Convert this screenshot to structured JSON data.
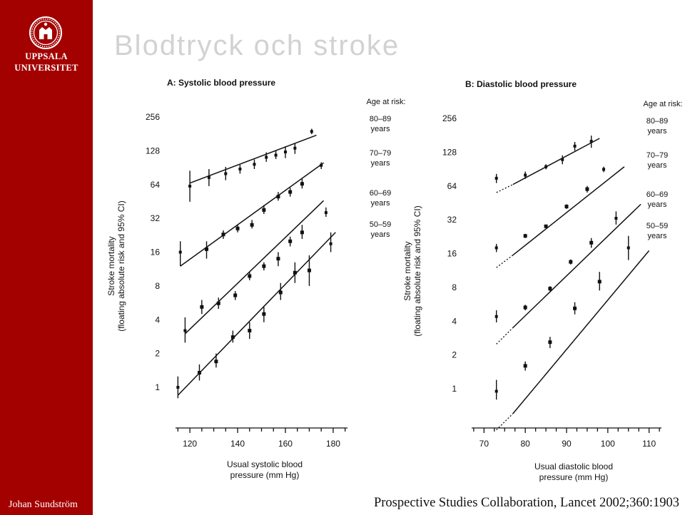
{
  "slide": {
    "title": "Blodtryck och stroke",
    "logo_line1": "UPPSALA",
    "logo_line2": "UNIVERSITET",
    "author": "Johan Sundström",
    "citation": "Prospective Studies Collaboration, Lancet 2002;360:1903"
  },
  "colors": {
    "sidebar": "#a30000",
    "title": "#d2d2d2"
  },
  "chart_data": [
    {
      "type": "scatter",
      "panel": "A",
      "title": "A: Systolic blood pressure",
      "xlabel": [
        "Usual systolic blood",
        "pressure (mm Hg)"
      ],
      "ylabel": [
        "Stroke mortality",
        "(floating absolute risk and 95% CI)"
      ],
      "yscale": "log2",
      "ylim": [
        0.5,
        256
      ],
      "xlim": [
        114,
        186
      ],
      "xticks": [
        120,
        140,
        160,
        180
      ],
      "yticks": [
        1,
        2,
        4,
        8,
        16,
        32,
        64,
        128,
        256
      ],
      "legend_title": "Age at risk:",
      "series": [
        {
          "name": "80–89 years",
          "label1": "80–89",
          "label2": "years",
          "x": [
            120,
            128,
            135,
            141,
            147,
            152,
            156,
            160,
            164,
            171
          ],
          "y": [
            62,
            74,
            80,
            88,
            97,
            112,
            117,
            125,
            135,
            190
          ],
          "lo": [
            45,
            62,
            70,
            80,
            88,
            102,
            108,
            110,
            120,
            180
          ],
          "hi": [
            85,
            88,
            92,
            96,
            107,
            124,
            128,
            140,
            150,
            201
          ],
          "fit": [
            [
              120,
              66
            ],
            [
              173,
              176
            ]
          ],
          "solid": false
        },
        {
          "name": "70–79 years",
          "label1": "70–79",
          "label2": "years",
          "x": [
            116,
            127,
            134,
            140,
            146,
            151,
            157,
            162,
            167,
            175
          ],
          "y": [
            16,
            17,
            23,
            26,
            28,
            38,
            50,
            55,
            65,
            95
          ],
          "lo": [
            12,
            14,
            21,
            24,
            26,
            35,
            46,
            50,
            59,
            88
          ],
          "hi": [
            20,
            20,
            25,
            28,
            31,
            42,
            55,
            60,
            72,
            101
          ],
          "fit": [
            [
              116,
              12
            ],
            [
              176,
              100
            ]
          ],
          "solid": true
        },
        {
          "name": "60–69 years",
          "label1": "60–69",
          "label2": "years",
          "x": [
            118,
            125,
            132,
            139,
            145,
            151,
            157,
            162,
            167,
            177
          ],
          "y": [
            3.2,
            5.2,
            5.6,
            6.6,
            9.8,
            12,
            14,
            20,
            24,
            36
          ],
          "lo": [
            2.5,
            4.5,
            5.0,
            6.0,
            9.0,
            11,
            12,
            18,
            21,
            33
          ],
          "hi": [
            4.2,
            6.0,
            6.3,
            7.2,
            10.7,
            13,
            16,
            22,
            28,
            40
          ],
          "fit": [
            [
              118,
              3
            ],
            [
              176,
              46
            ]
          ],
          "solid": true
        },
        {
          "name": "50–59 years",
          "label1": "50–59",
          "label2": "years",
          "x": [
            115,
            124,
            131,
            138,
            145,
            151,
            158,
            164,
            170,
            179
          ],
          "y": [
            1.0,
            1.35,
            1.7,
            2.8,
            3.2,
            4.5,
            7,
            10.5,
            11,
            19
          ],
          "lo": [
            0.8,
            1.15,
            1.5,
            2.5,
            2.7,
            3.8,
            6,
            8.5,
            8,
            16
          ],
          "hi": [
            1.25,
            1.6,
            2.0,
            3.2,
            3.8,
            5.2,
            8.5,
            13,
            15,
            24
          ],
          "fit": [
            [
              115,
              0.85
            ],
            [
              181,
              24
            ]
          ],
          "solid": true
        }
      ]
    },
    {
      "type": "scatter",
      "panel": "B",
      "title": "B: Diastolic blood pressure",
      "xlabel": [
        "Usual diastolic blood",
        "pressure (mm Hg)"
      ],
      "ylabel": [
        "Stroke mortality",
        "(floating absolute risk and 95% CI)"
      ],
      "yscale": "log2",
      "ylim": [
        0.5,
        256
      ],
      "xlim": [
        67,
        113
      ],
      "xticks": [
        70,
        80,
        90,
        100,
        110
      ],
      "yticks": [
        1,
        2,
        4,
        8,
        16,
        32,
        64,
        128,
        256
      ],
      "legend_title": "Age at risk:",
      "series": [
        {
          "name": "80–89 years",
          "label1": "80–89",
          "label2": "years",
          "x": [
            73,
            80,
            85,
            89,
            92,
            96
          ],
          "y": [
            75,
            80,
            95,
            110,
            145,
            160
          ],
          "lo": [
            68,
            74,
            90,
            100,
            132,
            140
          ],
          "hi": [
            82,
            86,
            100,
            120,
            158,
            180
          ],
          "fit": [
            [
              77,
              66
            ],
            [
              98,
              170
            ]
          ],
          "dash": [
            [
              73,
              56
            ],
            [
              77,
              66
            ]
          ],
          "solid": false
        },
        {
          "name": "70–79 years",
          "label1": "70–79",
          "label2": "years",
          "x": [
            73,
            80,
            85,
            90,
            95,
            99
          ],
          "y": [
            18,
            23,
            28,
            42,
            60,
            90
          ],
          "lo": [
            16.5,
            22,
            27,
            40,
            56,
            85
          ],
          "hi": [
            19.5,
            24,
            29,
            44,
            64,
            95
          ],
          "fit": [
            [
              77,
              15.5
            ],
            [
              104,
              95
            ]
          ],
          "dash": [
            [
              73,
              12
            ],
            [
              77,
              15.5
            ]
          ],
          "solid": true
        },
        {
          "name": "60–69 years",
          "label1": "60–69",
          "label2": "years",
          "x": [
            73,
            80,
            86,
            91,
            96,
            102
          ],
          "y": [
            4.4,
            5.3,
            7.8,
            13.5,
            20,
            33
          ],
          "lo": [
            3.9,
            5.0,
            7.4,
            12.8,
            18,
            29
          ],
          "hi": [
            5.0,
            5.6,
            8.2,
            14.2,
            22,
            38
          ],
          "fit": [
            [
              77,
              3.5
            ],
            [
              108,
              44
            ]
          ],
          "dash": [
            [
              73,
              2.5
            ],
            [
              77,
              3.5
            ]
          ],
          "solid": true
        },
        {
          "name": "50–59 years",
          "label1": "50–59",
          "label2": "years",
          "x": [
            73,
            80,
            86,
            92,
            98,
            105
          ],
          "y": [
            0.95,
            1.6,
            2.6,
            5.2,
            9,
            18
          ],
          "lo": [
            0.8,
            1.45,
            2.3,
            4.6,
            7.5,
            14
          ],
          "hi": [
            1.2,
            1.75,
            2.9,
            5.9,
            11,
            23
          ],
          "fit": [
            [
              77,
              0.6
            ],
            [
              110,
              17
            ]
          ],
          "dash": [
            [
              73,
              0.43
            ],
            [
              77,
              0.6
            ]
          ],
          "solid": true
        }
      ]
    }
  ]
}
